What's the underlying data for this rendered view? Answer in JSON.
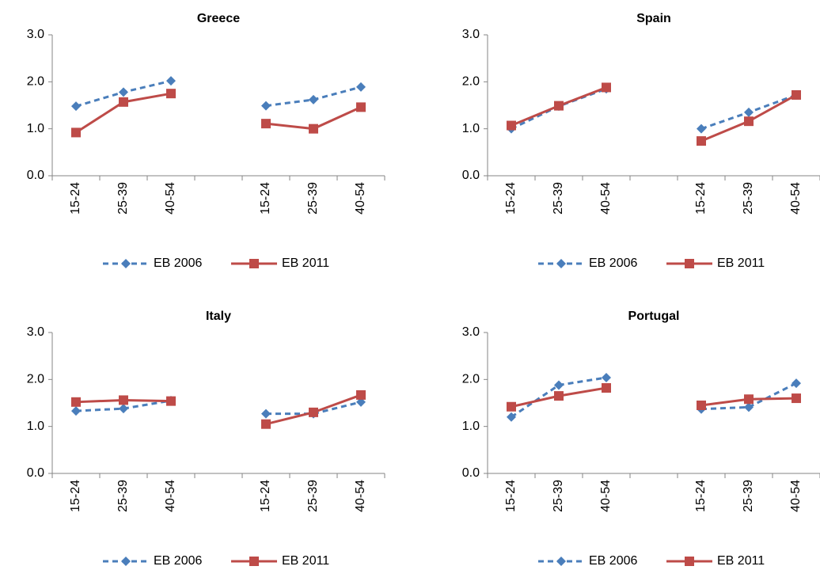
{
  "chart_data": [
    {
      "type": "line",
      "title": "Greece",
      "categories": [
        "15-24",
        "25-39",
        "40-54",
        null,
        "15-24",
        "25-39",
        "40-54"
      ],
      "series": [
        {
          "name": "EB 2006",
          "color": "#4a7ebb",
          "values": [
            1.48,
            1.78,
            2.02,
            null,
            1.49,
            1.62,
            1.89
          ]
        },
        {
          "name": "EB 2011",
          "color": "#be4b48",
          "values": [
            0.92,
            1.57,
            1.75,
            null,
            1.11,
            1.0,
            1.46
          ]
        }
      ],
      "ylim": [
        0,
        3
      ],
      "yticks": [
        {
          "value": 0,
          "label": "0.0"
        },
        {
          "value": 1,
          "label": "1.0"
        },
        {
          "value": 2,
          "label": "2.0"
        },
        {
          "value": 3,
          "label": "3.0"
        }
      ]
    },
    {
      "type": "line",
      "title": "Spain",
      "categories": [
        "15-24",
        "25-39",
        "40-54",
        null,
        "15-24",
        "25-39",
        "40-54"
      ],
      "series": [
        {
          "name": "EB 2006",
          "color": "#4a7ebb",
          "values": [
            1.0,
            1.48,
            1.85,
            null,
            1.0,
            1.35,
            1.72
          ]
        },
        {
          "name": "EB 2011",
          "color": "#be4b48",
          "values": [
            1.07,
            1.49,
            1.88,
            null,
            0.74,
            1.16,
            1.72
          ]
        }
      ],
      "ylim": [
        0,
        3
      ],
      "yticks": [
        {
          "value": 0,
          "label": "0.0"
        },
        {
          "value": 1,
          "label": "1.0"
        },
        {
          "value": 2,
          "label": "2.0"
        },
        {
          "value": 3,
          "label": "3.0"
        }
      ]
    },
    {
      "type": "line",
      "title": "Italy",
      "categories": [
        "15-24",
        "25-39",
        "40-54",
        null,
        "15-24",
        "25-39",
        "40-54"
      ],
      "series": [
        {
          "name": "EB 2006",
          "color": "#4a7ebb",
          "values": [
            1.33,
            1.38,
            1.55,
            null,
            1.27,
            1.27,
            1.52
          ]
        },
        {
          "name": "EB 2011",
          "color": "#be4b48",
          "values": [
            1.52,
            1.56,
            1.54,
            null,
            1.05,
            1.3,
            1.67
          ]
        }
      ],
      "ylim": [
        0,
        3
      ],
      "yticks": [
        {
          "value": 0,
          "label": "0.0"
        },
        {
          "value": 1,
          "label": "1.0"
        },
        {
          "value": 2,
          "label": "2.0"
        },
        {
          "value": 3,
          "label": "3.0"
        }
      ]
    },
    {
      "type": "line",
      "title": "Portugal",
      "categories": [
        "15-24",
        "25-39",
        "40-54",
        null,
        "15-24",
        "25-39",
        "40-54"
      ],
      "series": [
        {
          "name": "EB 2006",
          "color": "#4a7ebb",
          "values": [
            1.2,
            1.88,
            2.04,
            null,
            1.37,
            1.41,
            1.92
          ]
        },
        {
          "name": "EB 2011",
          "color": "#be4b48",
          "values": [
            1.42,
            1.65,
            1.82,
            null,
            1.45,
            1.58,
            1.6
          ]
        }
      ],
      "ylim": [
        0,
        3
      ],
      "yticks": [
        {
          "value": 0,
          "label": "0.0"
        },
        {
          "value": 1,
          "label": "1.0"
        },
        {
          "value": 2,
          "label": "2.0"
        },
        {
          "value": 3,
          "label": "3.0"
        }
      ]
    }
  ]
}
